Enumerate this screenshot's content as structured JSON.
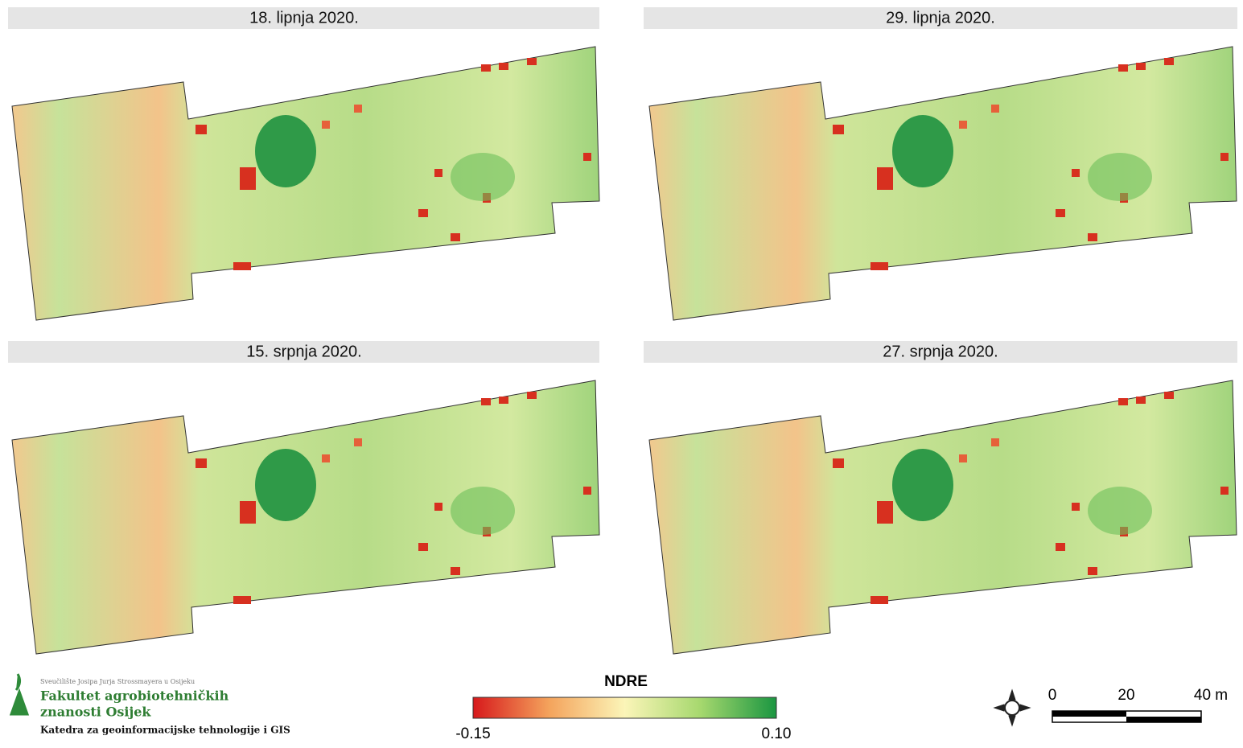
{
  "panels": [
    {
      "title": "18. lipnja 2020."
    },
    {
      "title": "29. lipnja 2020."
    },
    {
      "title": "15. srpnja 2020."
    },
    {
      "title": "27. srpnja 2020."
    }
  ],
  "institution": {
    "university": "Sveučilište Josipa Jurja Strossmayera u Osijeku",
    "faculty_line1": "Fakultet agrobiotehničkih",
    "faculty_line2": "znanosti Osijek",
    "department": "Katedra za geoinformacijske tehnologije i GIS"
  },
  "legend": {
    "title": "NDRE",
    "min_label": "-0.15",
    "max_label": "0.10"
  },
  "scale_bar": {
    "labels": [
      "0",
      "20",
      "40 m"
    ]
  }
}
